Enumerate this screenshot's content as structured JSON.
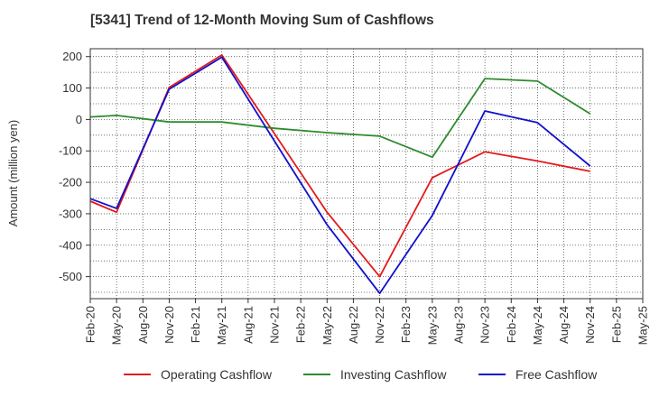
{
  "chart_data": {
    "type": "line",
    "title": "[5341]  Trend of 12-Month Moving Sum of Cashflows",
    "xlabel": "",
    "ylabel": "Amount (million yen)",
    "ylim": [
      -570,
      225
    ],
    "yticks": [
      200,
      100,
      0,
      -100,
      -200,
      -300,
      -400,
      -500
    ],
    "categories": [
      "Feb-20",
      "May-20",
      "Aug-20",
      "Nov-20",
      "Feb-21",
      "May-21",
      "Aug-21",
      "Nov-21",
      "Feb-22",
      "May-22",
      "Aug-22",
      "Nov-22",
      "Feb-23",
      "May-23",
      "Aug-23",
      "Nov-23",
      "Feb-24",
      "May-24",
      "Aug-24",
      "Nov-24",
      "Feb-25",
      "May-25"
    ],
    "grid": true,
    "legend_position": "bottom",
    "series": [
      {
        "name": "Operating Cashflow",
        "color": "#e31a1c",
        "values": [
          -260,
          -295,
          null,
          102,
          null,
          205,
          null,
          null,
          null,
          -295,
          null,
          -500,
          null,
          -185,
          null,
          -103,
          null,
          -132,
          null,
          -165,
          null,
          null
        ]
      },
      {
        "name": "Investing Cashflow",
        "color": "#2e8b2e",
        "values": [
          8,
          13,
          null,
          -8,
          null,
          -8,
          null,
          -28,
          null,
          -42,
          null,
          -53,
          null,
          -120,
          null,
          130,
          null,
          122,
          null,
          18,
          null,
          null
        ]
      },
      {
        "name": "Free Cashflow",
        "color": "#1010cc",
        "values": [
          -252,
          -283,
          null,
          96,
          null,
          198,
          null,
          null,
          null,
          -335,
          null,
          -553,
          null,
          -305,
          null,
          27,
          null,
          -10,
          null,
          -148,
          null,
          null
        ]
      }
    ]
  }
}
